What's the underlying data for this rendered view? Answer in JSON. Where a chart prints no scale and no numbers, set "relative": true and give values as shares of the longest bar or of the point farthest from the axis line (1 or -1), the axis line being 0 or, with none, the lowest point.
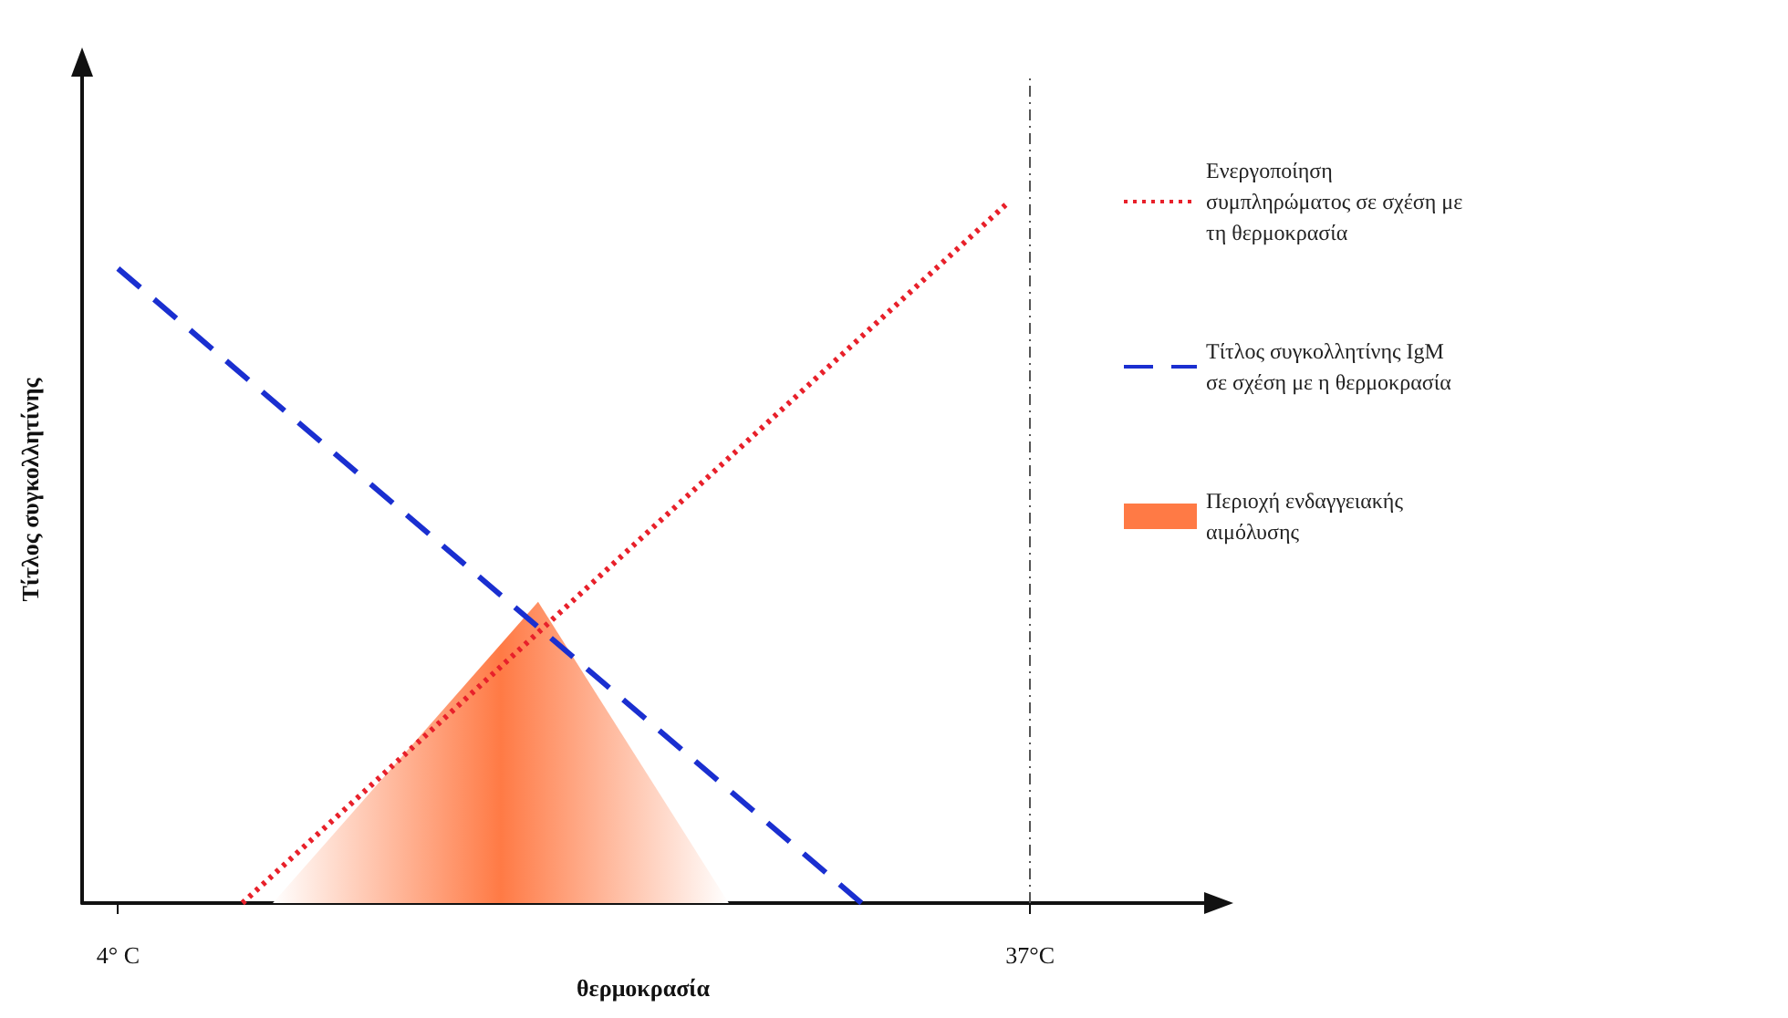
{
  "chart_data": {
    "type": "line",
    "relative": true,
    "xlabel": "θερμοκρασία",
    "ylabel": "Τίτλος συγκολλητίνης",
    "xlim": [
      2.7,
      43.3
    ],
    "xticks": [
      {
        "value": 4,
        "label": "4° C"
      },
      {
        "value": 37,
        "label": "37°C"
      }
    ],
    "tick_labels": "x",
    "grid": false,
    "legend": "right",
    "marker": "none",
    "series": [
      {
        "name": "Ενεργοποίηση συμπληρώματος σε σχέση με τη θερμοκρασία",
        "color": "#e8202a",
        "line_style": "dotted",
        "x": [
          8.5,
          36.2
        ],
        "values": [
          0,
          1
        ]
      },
      {
        "name": "Τίτλος συγκολλητίνης IgM σε σχέση με η θερμοκρασία",
        "color": "#1a2fd0",
        "line_style": "dashed",
        "x": [
          4,
          30.9
        ],
        "values": [
          0.906,
          0
        ]
      },
      {
        "name": "Περιοχή ενδαγγειακής αιμόλυσης",
        "type": "area",
        "color": "#ff7a45",
        "x": [
          9.6,
          19.2,
          26.1
        ],
        "values": [
          0,
          0.43,
          0
        ]
      }
    ],
    "ref_lines": [
      {
        "axis": "x",
        "value": 37,
        "color": "#555555",
        "line_style": "dashed"
      }
    ]
  }
}
